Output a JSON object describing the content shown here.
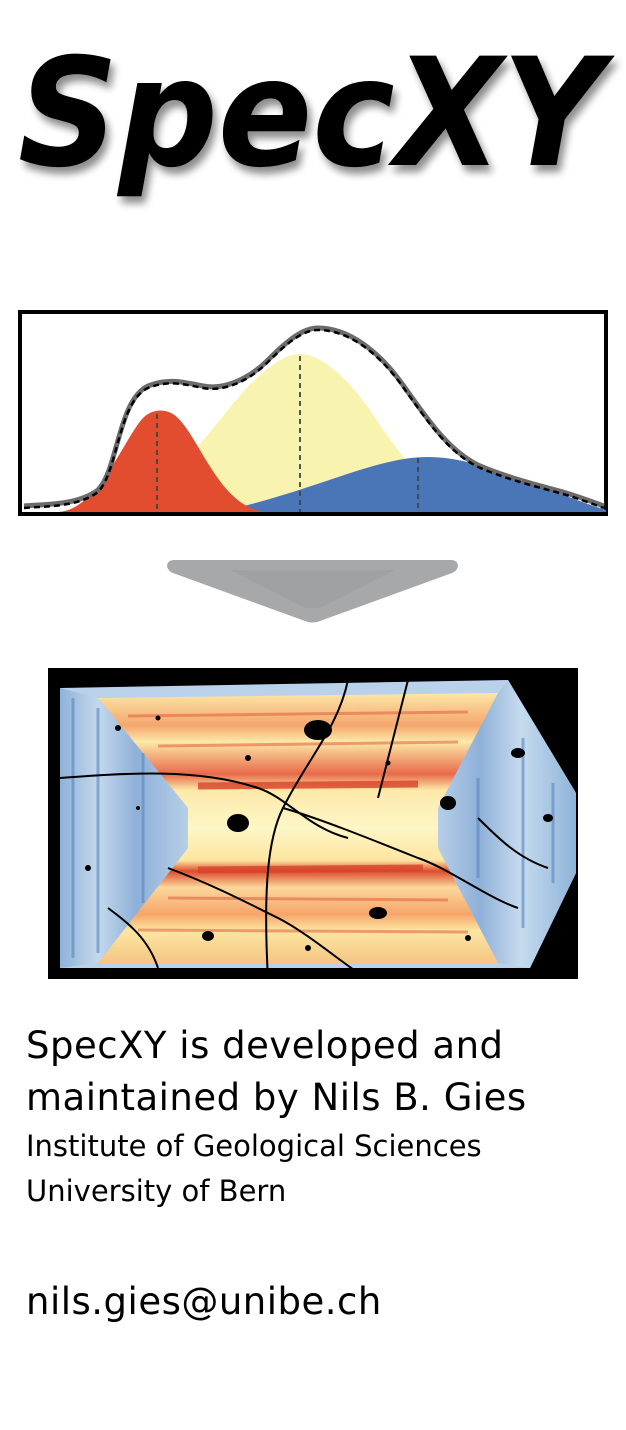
{
  "logo": {
    "text": "SpecXY"
  },
  "credits": {
    "line1": "SpecXY is developed and",
    "line2": "maintained by Nils B. Gies",
    "line3": "Institute of Geological Sciences",
    "line4": "University of Bern"
  },
  "contact": {
    "email": "nils.gies@unibe.ch"
  },
  "colors": {
    "peak_red": "#e14d2e",
    "peak_yellow": "#f8f3ae",
    "peak_blue": "#4a76b8",
    "envelope": "#6b6b6b",
    "arrow": "#a6a8aa"
  }
}
